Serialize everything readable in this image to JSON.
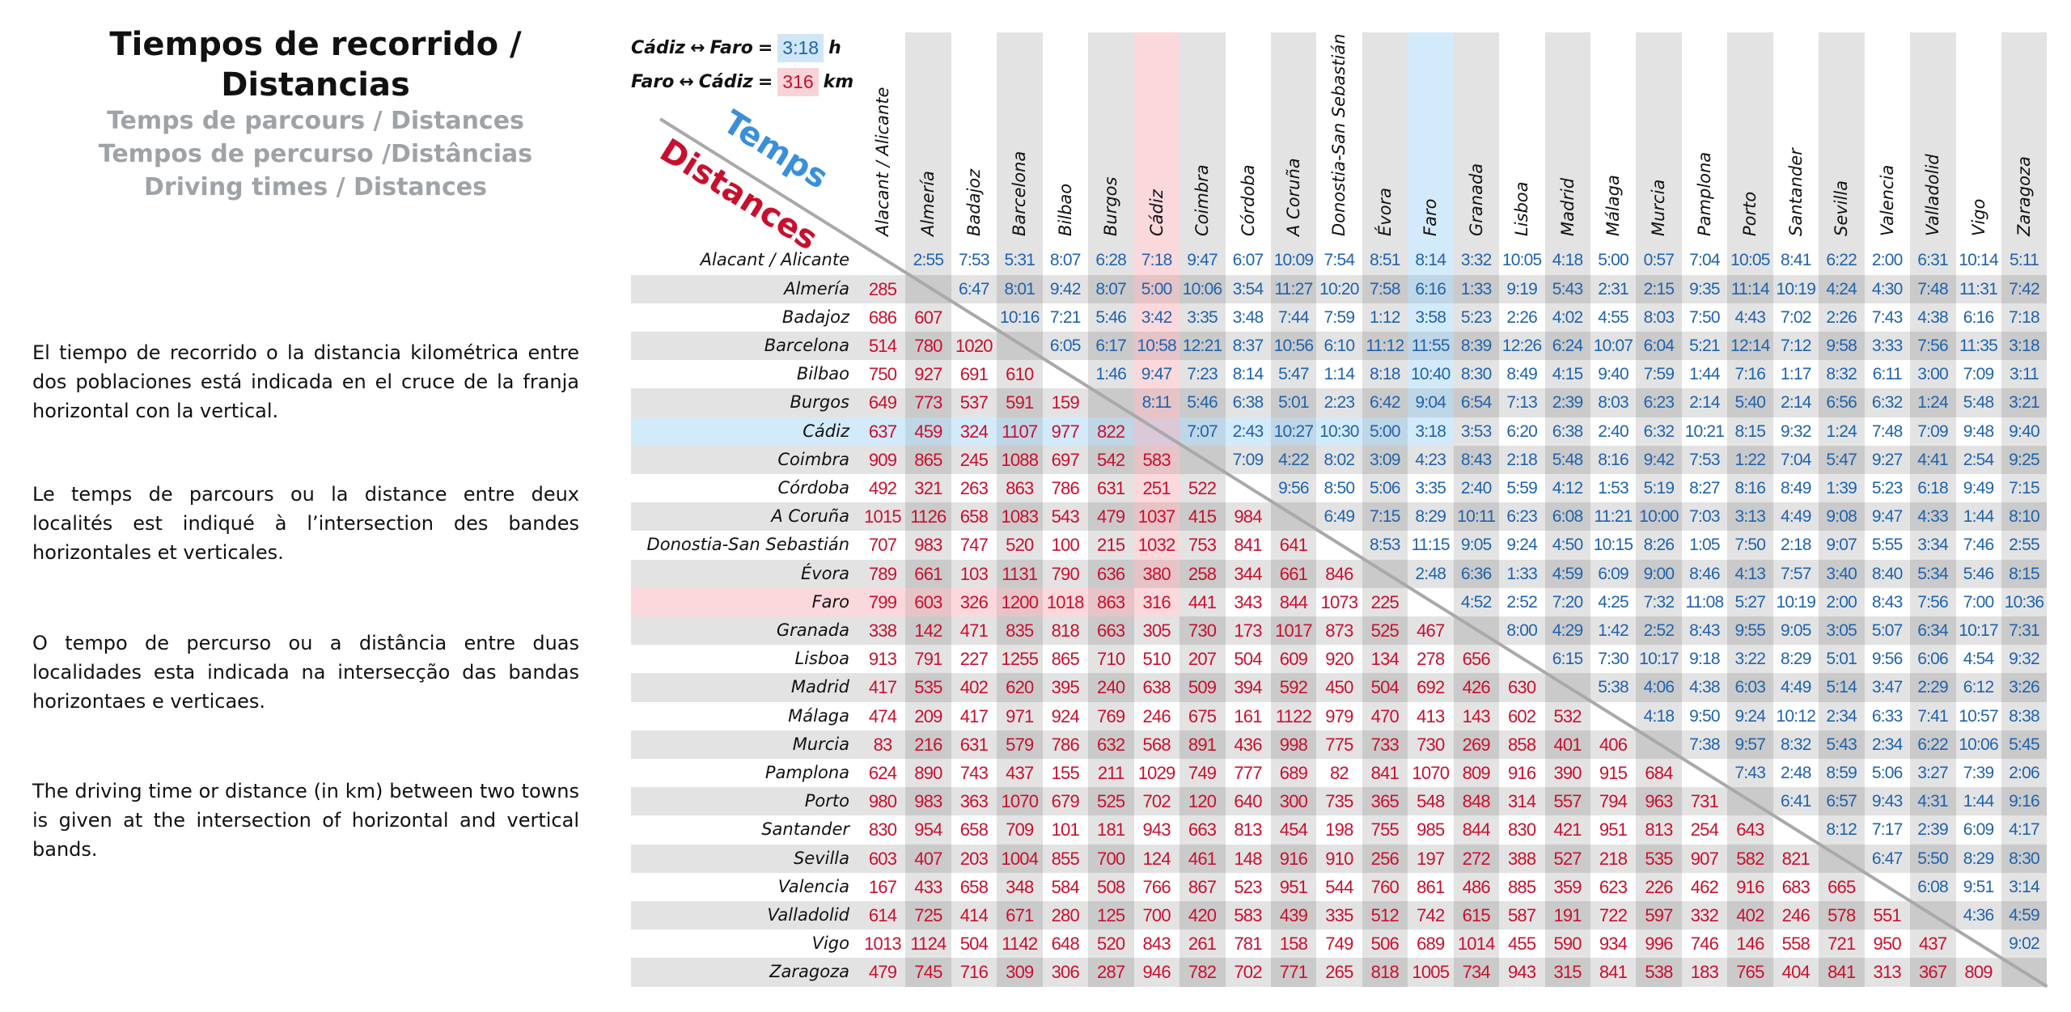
{
  "header": {
    "title": "Tiempos de recorrido / Distancias",
    "subtitles": [
      "Temps de parcours / Distances",
      "Tempos de percurso /Distâncias",
      "Driving times / Distances"
    ]
  },
  "descriptions": [
    "El tiempo de recorrido o la distancia kilométrica entre dos poblaciones está indicada en el cruce de la franja horizontal con la vertical.",
    "Le temps de parcours ou la distance entre deux localités est indiqué à l’intersection des bandes horizontales et verticales.",
    "O tempo de percurso ou a distância entre duas localidades esta indicada na intersecção das bandas horizontaes e verticaes.",
    "The driving time or distance (in km) between two towns is given at the intersection of horizontal and vertical bands."
  ],
  "legend": {
    "time_example": {
      "from": "Cádiz",
      "arrow": "↔",
      "to": "Faro",
      "equals": "=",
      "value": "3:18",
      "unit": "h"
    },
    "distance_example": {
      "from": "Faro",
      "arrow": "↔",
      "to": "Cádiz",
      "equals": "=",
      "value": "316",
      "unit": "km"
    },
    "time_label": "Temps",
    "distance_label": "Distances"
  },
  "colors": {
    "time": "#1f63ad",
    "distance": "#c8102e",
    "highlight_time": "#cfe6f7",
    "highlight_distance": "#f8d3d7",
    "stripe": "#e3e3e3"
  },
  "highlight": {
    "time_row": 6,
    "time_col": 12,
    "distance_row": 12,
    "distance_col": 6
  },
  "cities": [
    "Alacant / Alicante",
    "Almería",
    "Badajoz",
    "Barcelona",
    "Bilbao",
    "Burgos",
    "Cádiz",
    "Coimbra",
    "Córdoba",
    "A Coruña",
    "Donostia-San Sebastián",
    "Évora",
    "Faro",
    "Granada",
    "Lisboa",
    "Madrid",
    "Málaga",
    "Murcia",
    "Pamplona",
    "Porto",
    "Santander",
    "Sevilla",
    "Valencia",
    "Valladolid",
    "Vigo",
    "Zaragoza"
  ],
  "times": [
    [
      "2:55",
      "7:53",
      "5:31",
      "8:07",
      "6:28",
      "7:18",
      "9:47",
      "6:07",
      "10:09",
      "7:54",
      "8:51",
      "8:14",
      "3:32",
      "10:05",
      "4:18",
      "5:00",
      "0:57",
      "7:04",
      "10:05",
      "8:41",
      "6:22",
      "2:00",
      "6:31",
      "10:14",
      "5:11"
    ],
    [
      "6:47",
      "8:01",
      "9:42",
      "8:07",
      "5:00",
      "10:06",
      "3:54",
      "11:27",
      "10:20",
      "7:58",
      "6:16",
      "1:33",
      "9:19",
      "5:43",
      "2:31",
      "2:15",
      "9:35",
      "11:14",
      "10:19",
      "4:24",
      "4:30",
      "7:48",
      "11:31",
      "7:42"
    ],
    [
      "10:16",
      "7:21",
      "5:46",
      "3:42",
      "3:35",
      "3:48",
      "7:44",
      "7:59",
      "1:12",
      "3:58",
      "5:23",
      "2:26",
      "4:02",
      "4:55",
      "8:03",
      "7:50",
      "4:43",
      "7:02",
      "2:26",
      "7:43",
      "4:38",
      "6:16",
      "7:18"
    ],
    [
      "6:05",
      "6:17",
      "10:58",
      "12:21",
      "8:37",
      "10:56",
      "6:10",
      "11:12",
      "11:55",
      "8:39",
      "12:26",
      "6:24",
      "10:07",
      "6:04",
      "5:21",
      "12:14",
      "7:12",
      "9:58",
      "3:33",
      "7:56",
      "11:35",
      "3:18"
    ],
    [
      "1:46",
      "9:47",
      "7:23",
      "8:14",
      "5:47",
      "1:14",
      "8:18",
      "10:40",
      "8:30",
      "8:49",
      "4:15",
      "9:40",
      "7:59",
      "1:44",
      "7:16",
      "1:17",
      "8:32",
      "6:11",
      "3:00",
      "7:09",
      "3:11"
    ],
    [
      "8:11",
      "5:46",
      "6:38",
      "5:01",
      "2:23",
      "6:42",
      "9:04",
      "6:54",
      "7:13",
      "2:39",
      "8:03",
      "6:23",
      "2:14",
      "5:40",
      "2:14",
      "6:56",
      "6:32",
      "1:24",
      "5:48",
      "3:21"
    ],
    [
      "7:07",
      "2:43",
      "10:27",
      "10:30",
      "5:00",
      "3:18",
      "3:53",
      "6:20",
      "6:38",
      "2:40",
      "6:32",
      "10:21",
      "8:15",
      "9:32",
      "1:24",
      "7:48",
      "7:09",
      "9:48",
      "9:40"
    ],
    [
      "7:09",
      "4:22",
      "8:02",
      "3:09",
      "4:23",
      "8:43",
      "2:18",
      "5:48",
      "8:16",
      "9:42",
      "7:53",
      "1:22",
      "7:04",
      "5:47",
      "9:27",
      "4:41",
      "2:54",
      "9:25"
    ],
    [
      "9:56",
      "8:50",
      "5:06",
      "3:35",
      "2:40",
      "5:59",
      "4:12",
      "1:53",
      "5:19",
      "8:27",
      "8:16",
      "8:49",
      "1:39",
      "5:23",
      "6:18",
      "9:49",
      "7:15"
    ],
    [
      "6:49",
      "7:15",
      "8:29",
      "10:11",
      "6:23",
      "6:08",
      "11:21",
      "10:00",
      "7:03",
      "3:13",
      "4:49",
      "9:08",
      "9:47",
      "4:33",
      "1:44",
      "8:10"
    ],
    [
      "8:53",
      "11:15",
      "9:05",
      "9:24",
      "4:50",
      "10:15",
      "8:26",
      "1:05",
      "7:50",
      "2:18",
      "9:07",
      "5:55",
      "3:34",
      "7:46",
      "2:55"
    ],
    [
      "2:48",
      "6:36",
      "1:33",
      "4:59",
      "6:09",
      "9:00",
      "8:46",
      "4:13",
      "7:57",
      "3:40",
      "8:40",
      "5:34",
      "5:46",
      "8:15"
    ],
    [
      "4:52",
      "2:52",
      "7:20",
      "4:25",
      "7:32",
      "11:08",
      "5:27",
      "10:19",
      "2:00",
      "8:43",
      "7:56",
      "7:00",
      "10:36"
    ],
    [
      "8:00",
      "4:29",
      "1:42",
      "2:52",
      "8:43",
      "9:55",
      "9:05",
      "3:05",
      "5:07",
      "6:34",
      "10:17",
      "7:31"
    ],
    [
      "6:15",
      "7:30",
      "10:17",
      "9:18",
      "3:22",
      "8:29",
      "5:01",
      "9:56",
      "6:06",
      "4:54",
      "9:32"
    ],
    [
      "5:38",
      "4:06",
      "4:38",
      "6:03",
      "4:49",
      "5:14",
      "3:47",
      "2:29",
      "6:12",
      "3:26"
    ],
    [
      "4:18",
      "9:50",
      "9:24",
      "10:12",
      "2:34",
      "6:33",
      "7:41",
      "10:57",
      "8:38"
    ],
    [
      "7:38",
      "9:57",
      "8:32",
      "5:43",
      "2:34",
      "6:22",
      "10:06",
      "5:45"
    ],
    [
      "7:43",
      "2:48",
      "8:59",
      "5:06",
      "3:27",
      "7:39",
      "2:06"
    ],
    [
      "6:41",
      "6:57",
      "9:43",
      "4:31",
      "1:44",
      "9:16"
    ],
    [
      "8:12",
      "7:17",
      "2:39",
      "6:09",
      "4:17"
    ],
    [
      "6:47",
      "5:50",
      "8:29",
      "8:30"
    ],
    [
      "6:08",
      "9:51",
      "3:14"
    ],
    [
      "4:36",
      "4:59"
    ],
    [
      "9:02"
    ],
    []
  ],
  "distances": [
    [],
    [
      "285"
    ],
    [
      "686",
      "607"
    ],
    [
      "514",
      "780",
      "1020"
    ],
    [
      "750",
      "927",
      "691",
      "610"
    ],
    [
      "649",
      "773",
      "537",
      "591",
      "159"
    ],
    [
      "637",
      "459",
      "324",
      "1107",
      "977",
      "822"
    ],
    [
      "909",
      "865",
      "245",
      "1088",
      "697",
      "542",
      "583"
    ],
    [
      "492",
      "321",
      "263",
      "863",
      "786",
      "631",
      "251",
      "522"
    ],
    [
      "1015",
      "1126",
      "658",
      "1083",
      "543",
      "479",
      "1037",
      "415",
      "984"
    ],
    [
      "707",
      "983",
      "747",
      "520",
      "100",
      "215",
      "1032",
      "753",
      "841",
      "641"
    ],
    [
      "789",
      "661",
      "103",
      "1131",
      "790",
      "636",
      "380",
      "258",
      "344",
      "661",
      "846"
    ],
    [
      "799",
      "603",
      "326",
      "1200",
      "1018",
      "863",
      "316",
      "441",
      "343",
      "844",
      "1073",
      "225"
    ],
    [
      "338",
      "142",
      "471",
      "835",
      "818",
      "663",
      "305",
      "730",
      "173",
      "1017",
      "873",
      "525",
      "467"
    ],
    [
      "913",
      "791",
      "227",
      "1255",
      "865",
      "710",
      "510",
      "207",
      "504",
      "609",
      "920",
      "134",
      "278",
      "656"
    ],
    [
      "417",
      "535",
      "402",
      "620",
      "395",
      "240",
      "638",
      "509",
      "394",
      "592",
      "450",
      "504",
      "692",
      "426",
      "630"
    ],
    [
      "474",
      "209",
      "417",
      "971",
      "924",
      "769",
      "246",
      "675",
      "161",
      "1122",
      "979",
      "470",
      "413",
      "143",
      "602",
      "532"
    ],
    [
      "83",
      "216",
      "631",
      "579",
      "786",
      "632",
      "568",
      "891",
      "436",
      "998",
      "775",
      "733",
      "730",
      "269",
      "858",
      "401",
      "406"
    ],
    [
      "624",
      "890",
      "743",
      "437",
      "155",
      "211",
      "1029",
      "749",
      "777",
      "689",
      "82",
      "841",
      "1070",
      "809",
      "916",
      "390",
      "915",
      "684"
    ],
    [
      "980",
      "983",
      "363",
      "1070",
      "679",
      "525",
      "702",
      "120",
      "640",
      "300",
      "735",
      "365",
      "548",
      "848",
      "314",
      "557",
      "794",
      "963",
      "731"
    ],
    [
      "830",
      "954",
      "658",
      "709",
      "101",
      "181",
      "943",
      "663",
      "813",
      "454",
      "198",
      "755",
      "985",
      "844",
      "830",
      "421",
      "951",
      "813",
      "254",
      "643"
    ],
    [
      "603",
      "407",
      "203",
      "1004",
      "855",
      "700",
      "124",
      "461",
      "148",
      "916",
      "910",
      "256",
      "197",
      "272",
      "388",
      "527",
      "218",
      "535",
      "907",
      "582",
      "821"
    ],
    [
      "167",
      "433",
      "658",
      "348",
      "584",
      "508",
      "766",
      "867",
      "523",
      "951",
      "544",
      "760",
      "861",
      "486",
      "885",
      "359",
      "623",
      "226",
      "462",
      "916",
      "683",
      "665"
    ],
    [
      "614",
      "725",
      "414",
      "671",
      "280",
      "125",
      "700",
      "420",
      "583",
      "439",
      "335",
      "512",
      "742",
      "615",
      "587",
      "191",
      "722",
      "597",
      "332",
      "402",
      "246",
      "578",
      "551"
    ],
    [
      "1013",
      "1124",
      "504",
      "1142",
      "648",
      "520",
      "843",
      "261",
      "781",
      "158",
      "749",
      "506",
      "689",
      "1014",
      "455",
      "590",
      "934",
      "996",
      "746",
      "146",
      "558",
      "721",
      "950",
      "437"
    ],
    [
      "479",
      "745",
      "716",
      "309",
      "306",
      "287",
      "946",
      "782",
      "702",
      "771",
      "265",
      "818",
      "1005",
      "734",
      "943",
      "315",
      "841",
      "538",
      "183",
      "765",
      "404",
      "841",
      "313",
      "367",
      "809"
    ]
  ]
}
